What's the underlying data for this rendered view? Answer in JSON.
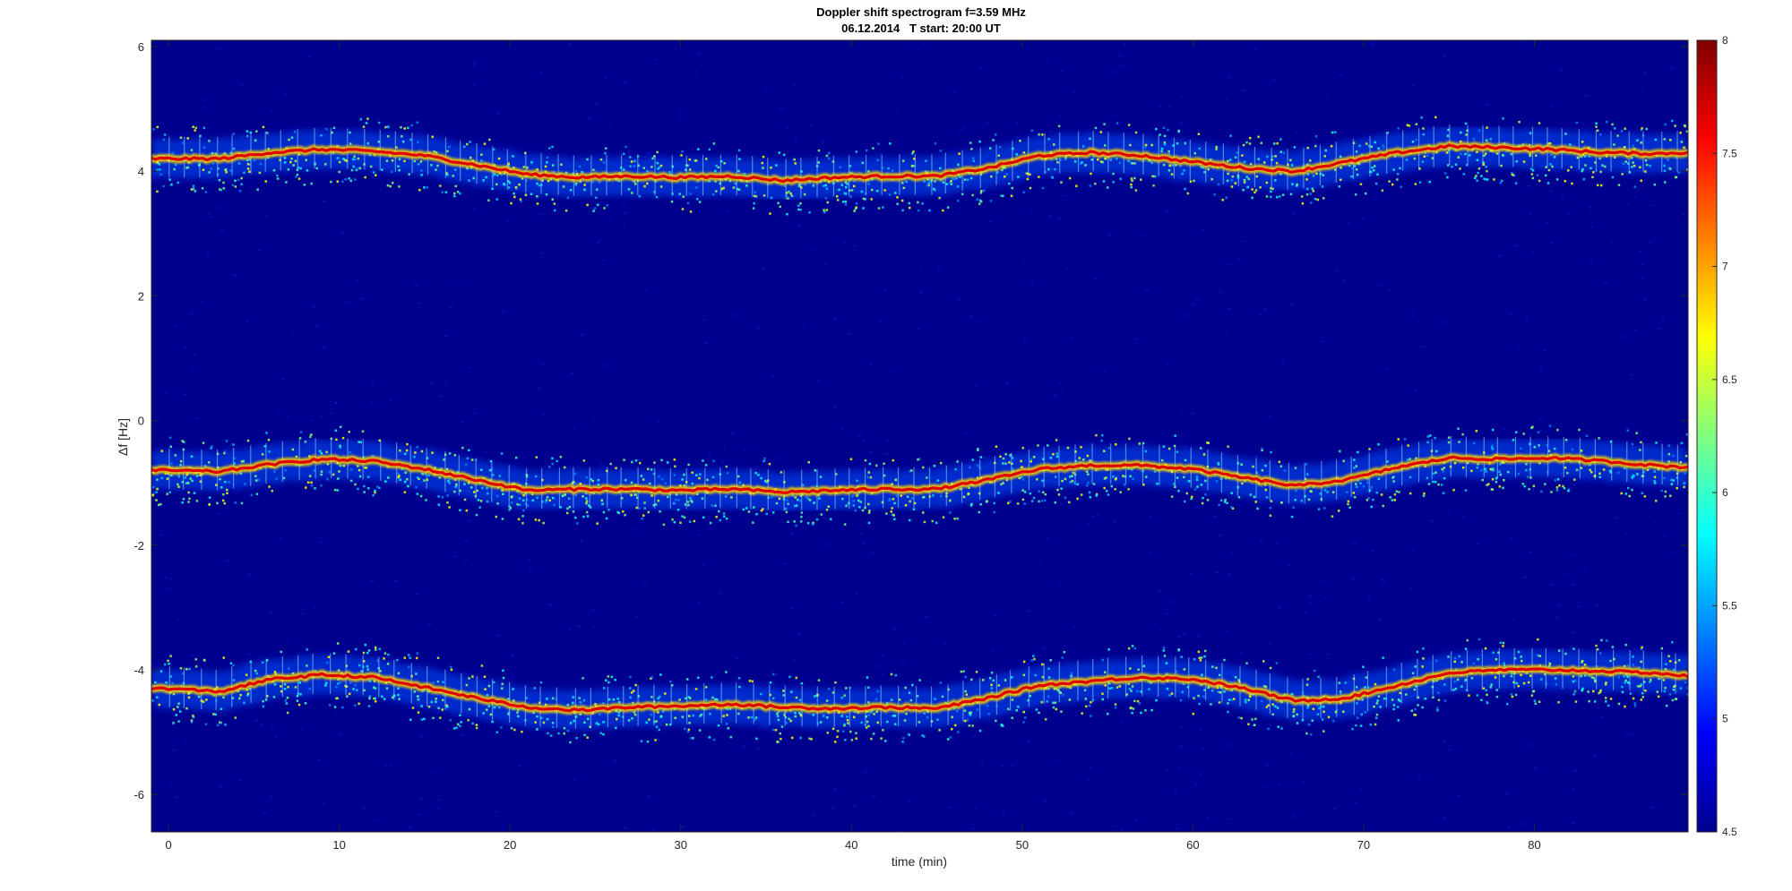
{
  "chart_data": {
    "type": "heatmap",
    "title": "Doppler shift spectrogram f=3.59 MHz",
    "subtitle": "06.12.2014   T start: 20:00 UT",
    "xlabel": "time (min)",
    "ylabel": "Δf [Hz]",
    "xlim": [
      -1,
      89
    ],
    "ylim": [
      -6.6,
      6.1
    ],
    "x_ticks": [
      "0",
      "10",
      "20",
      "30",
      "40",
      "50",
      "60",
      "70",
      "80"
    ],
    "y_ticks": [
      "-6",
      "-4",
      "-2",
      "0",
      "2",
      "4",
      "6"
    ],
    "colorbar": {
      "range": [
        4.5,
        8
      ],
      "ticks": [
        "4.5",
        "5",
        "5.5",
        "6",
        "6.5",
        "7",
        "7.5",
        "8"
      ],
      "colormap": "jet"
    },
    "background_color": "#00008f",
    "traces": [
      {
        "t": [
          0,
          3,
          6,
          9,
          12,
          15,
          18,
          21,
          24,
          27,
          30,
          33,
          36,
          39,
          42,
          45,
          48,
          51,
          54,
          57,
          60,
          63,
          66,
          69,
          72,
          75,
          78,
          81,
          84,
          87,
          89
        ],
        "df": [
          4.2,
          4.2,
          4.3,
          4.35,
          4.32,
          4.25,
          4.1,
          3.95,
          3.9,
          3.92,
          3.9,
          3.92,
          3.85,
          3.9,
          3.92,
          3.92,
          4.05,
          4.25,
          4.3,
          4.25,
          4.15,
          4.05,
          4.0,
          4.15,
          4.3,
          4.4,
          4.38,
          4.35,
          4.3,
          4.28,
          4.3
        ]
      },
      {
        "t": [
          0,
          3,
          6,
          9,
          12,
          15,
          18,
          21,
          24,
          27,
          30,
          33,
          36,
          39,
          42,
          45,
          48,
          51,
          54,
          57,
          60,
          63,
          66,
          69,
          72,
          75,
          78,
          81,
          84,
          87,
          89
        ],
        "df": [
          -0.8,
          -0.82,
          -0.7,
          -0.62,
          -0.65,
          -0.78,
          -0.95,
          -1.12,
          -1.1,
          -1.1,
          -1.12,
          -1.1,
          -1.15,
          -1.12,
          -1.1,
          -1.1,
          -0.95,
          -0.78,
          -0.72,
          -0.72,
          -0.78,
          -0.92,
          -1.05,
          -0.95,
          -0.75,
          -0.6,
          -0.62,
          -0.6,
          -0.65,
          -0.72,
          -0.75
        ]
      },
      {
        "t": [
          0,
          3,
          6,
          9,
          12,
          15,
          18,
          21,
          24,
          27,
          30,
          33,
          36,
          39,
          42,
          45,
          48,
          51,
          54,
          57,
          60,
          63,
          66,
          69,
          72,
          75,
          78,
          81,
          84,
          87,
          89
        ],
        "df": [
          -4.3,
          -4.35,
          -4.15,
          -4.08,
          -4.12,
          -4.28,
          -4.45,
          -4.6,
          -4.65,
          -4.6,
          -4.58,
          -4.55,
          -4.6,
          -4.62,
          -4.6,
          -4.62,
          -4.45,
          -4.25,
          -4.18,
          -4.12,
          -4.15,
          -4.3,
          -4.5,
          -4.45,
          -4.25,
          -4.05,
          -4.0,
          -4.0,
          -4.02,
          -4.05,
          -4.1
        ]
      }
    ]
  }
}
